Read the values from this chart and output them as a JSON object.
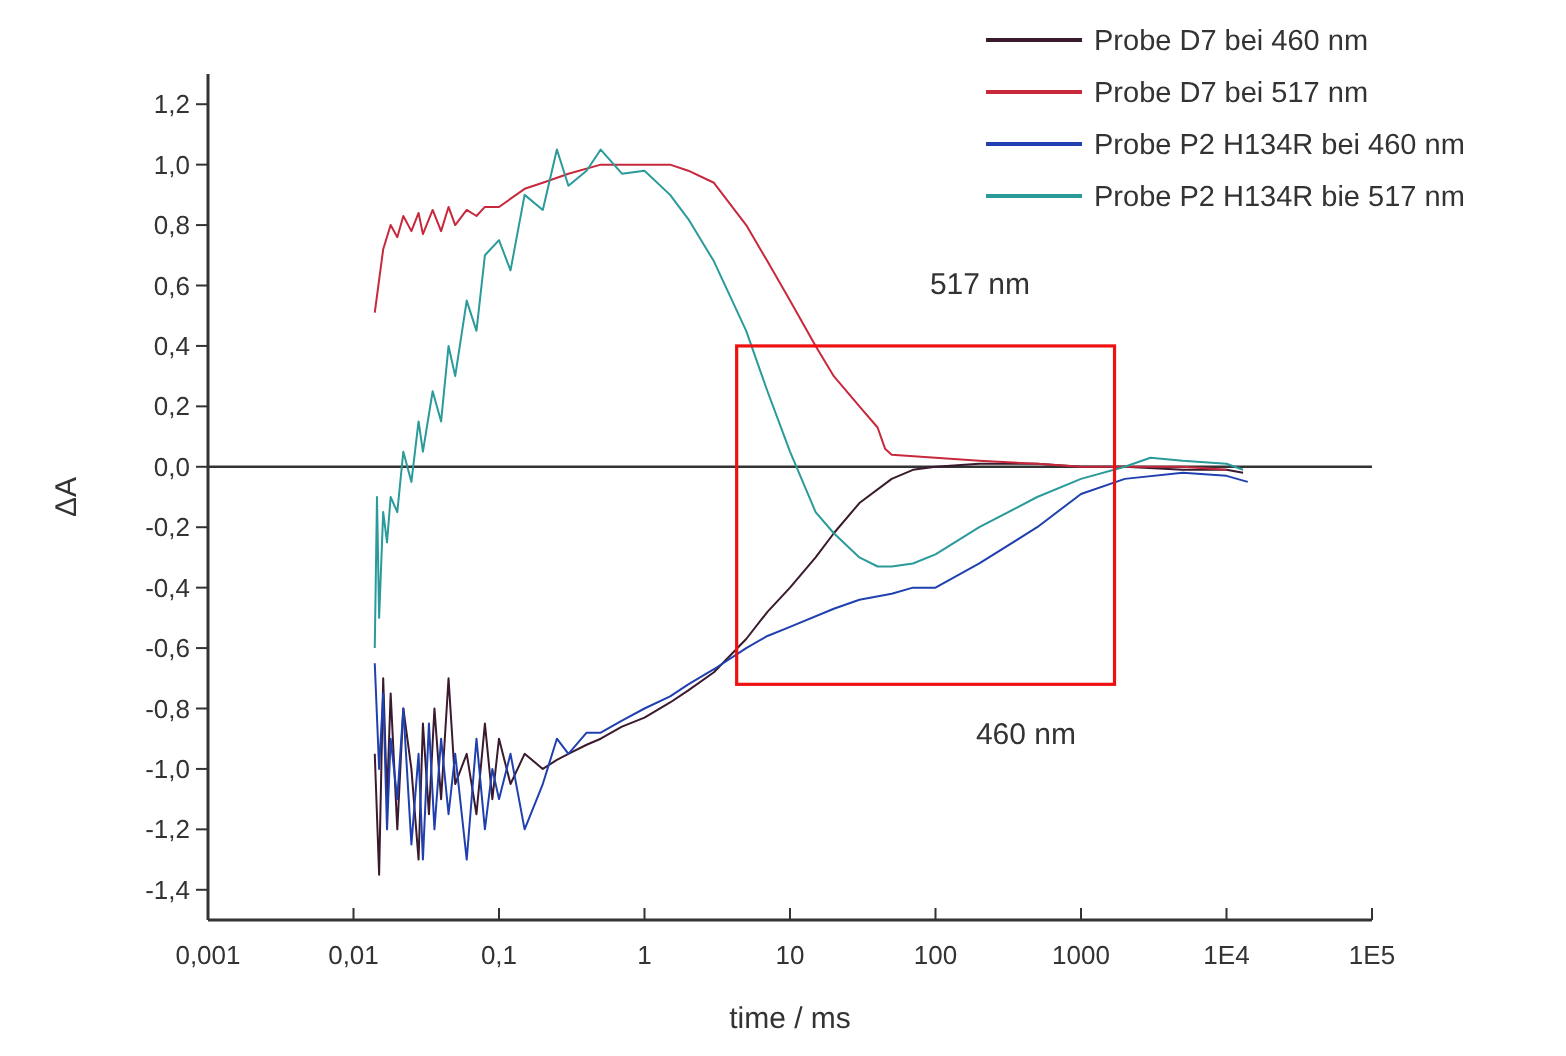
{
  "chart_data": {
    "type": "line",
    "xlabel": "time / ms",
    "ylabel": "ΔA",
    "log": "x",
    "grid": false,
    "legend": "top right",
    "line_style": "solid",
    "xlim": [
      0.001,
      100000
    ],
    "ylim": [
      -1.5,
      1.3
    ],
    "xticks": [
      {
        "value": 0.001,
        "label": "0,001"
      },
      {
        "value": 0.01,
        "label": "0,01"
      },
      {
        "value": 0.1,
        "label": "0,1"
      },
      1,
      10,
      100,
      1000,
      {
        "value": 10000,
        "label": "1E4"
      },
      {
        "value": 100000,
        "label": "1E5"
      }
    ],
    "yticks": [
      {
        "value": -1.4,
        "label": "-1,4"
      },
      {
        "value": -1.2,
        "label": "-1,2"
      },
      {
        "value": -1,
        "label": "-1,0"
      },
      {
        "value": -0.8,
        "label": "-0,8"
      },
      {
        "value": -0.6,
        "label": "-0,6"
      },
      {
        "value": -0.4,
        "label": "-0,4"
      },
      {
        "value": -0.2,
        "label": "-0,2"
      },
      {
        "value": 0,
        "label": "0,0"
      },
      {
        "value": 0.2,
        "label": "0,2"
      },
      {
        "value": 0.4,
        "label": "0,4"
      },
      {
        "value": 0.6,
        "label": "0,6"
      },
      {
        "value": 0.8,
        "label": "0,8"
      },
      {
        "value": 1,
        "label": "1,0"
      },
      {
        "value": 1.2,
        "label": "1,2"
      }
    ],
    "ref_lines": [
      {
        "axis": "y",
        "value": 0,
        "color": "#333333"
      }
    ],
    "annotations": [
      "517 nm",
      "460 nm"
    ],
    "series": [
      {
        "name": "Probe D7 bei 460 nm",
        "color": "#3a1a2e",
        "x": [
          0.014,
          0.015,
          0.016,
          0.017,
          0.018,
          0.02,
          0.022,
          0.025,
          0.028,
          0.03,
          0.033,
          0.036,
          0.04,
          0.045,
          0.05,
          0.06,
          0.07,
          0.08,
          0.09,
          0.1,
          0.12,
          0.15,
          0.2,
          0.25,
          0.3,
          0.4,
          0.5,
          0.7,
          1,
          1.5,
          2,
          3,
          5,
          7,
          10,
          15,
          20,
          30,
          50,
          70,
          100,
          200,
          500,
          1000,
          2000,
          5000,
          10000,
          13000
        ],
        "values": [
          -0.95,
          -1.35,
          -0.7,
          -1.1,
          -0.75,
          -1.2,
          -0.8,
          -1.0,
          -1.3,
          -0.85,
          -1.15,
          -0.8,
          -1.1,
          -0.7,
          -1.05,
          -0.95,
          -1.15,
          -0.85,
          -1.1,
          -0.9,
          -1.05,
          -0.95,
          -1.0,
          -0.97,
          -0.95,
          -0.92,
          -0.9,
          -0.86,
          -0.83,
          -0.78,
          -0.74,
          -0.68,
          -0.57,
          -0.48,
          -0.4,
          -0.3,
          -0.22,
          -0.12,
          -0.04,
          -0.01,
          0.0,
          0.01,
          0.01,
          0.0,
          0.0,
          -0.01,
          -0.01,
          -0.02
        ]
      },
      {
        "name": "Probe D7 bei 517 nm",
        "color": "#c8283c",
        "x": [
          0.014,
          0.016,
          0.018,
          0.02,
          0.022,
          0.025,
          0.028,
          0.03,
          0.035,
          0.04,
          0.045,
          0.05,
          0.06,
          0.07,
          0.08,
          0.1,
          0.15,
          0.2,
          0.3,
          0.5,
          0.7,
          1,
          1.5,
          2,
          3,
          5,
          7,
          10,
          15,
          20,
          30,
          40,
          45,
          50,
          100,
          200,
          500,
          1000,
          2000,
          5000,
          10000
        ],
        "values": [
          0.51,
          0.72,
          0.8,
          0.76,
          0.83,
          0.78,
          0.84,
          0.77,
          0.85,
          0.78,
          0.86,
          0.8,
          0.85,
          0.83,
          0.86,
          0.86,
          0.92,
          0.94,
          0.97,
          1.0,
          1.0,
          1.0,
          1.0,
          0.98,
          0.94,
          0.8,
          0.68,
          0.55,
          0.4,
          0.3,
          0.2,
          0.13,
          0.06,
          0.04,
          0.03,
          0.02,
          0.01,
          0.0,
          0.0,
          0.0,
          -0.01
        ]
      },
      {
        "name": "Probe P2 H134R bei 460 nm",
        "color": "#2040b0",
        "x": [
          0.014,
          0.015,
          0.016,
          0.017,
          0.018,
          0.02,
          0.022,
          0.025,
          0.028,
          0.03,
          0.033,
          0.036,
          0.04,
          0.045,
          0.05,
          0.06,
          0.07,
          0.08,
          0.09,
          0.1,
          0.12,
          0.15,
          0.2,
          0.25,
          0.3,
          0.4,
          0.5,
          0.7,
          1,
          1.5,
          2,
          3,
          5,
          7,
          10,
          20,
          30,
          50,
          70,
          100,
          200,
          500,
          1000,
          2000,
          5000,
          10000,
          14000
        ],
        "values": [
          -0.65,
          -1.0,
          -0.75,
          -1.2,
          -0.9,
          -1.1,
          -0.8,
          -1.25,
          -0.95,
          -1.3,
          -0.85,
          -1.2,
          -0.9,
          -1.15,
          -0.95,
          -1.3,
          -0.9,
          -1.2,
          -1.0,
          -1.1,
          -0.95,
          -1.2,
          -1.05,
          -0.9,
          -0.95,
          -0.88,
          -0.88,
          -0.84,
          -0.8,
          -0.76,
          -0.72,
          -0.67,
          -0.6,
          -0.56,
          -0.53,
          -0.47,
          -0.44,
          -0.42,
          -0.4,
          -0.4,
          -0.32,
          -0.2,
          -0.09,
          -0.04,
          -0.02,
          -0.03,
          -0.05
        ]
      },
      {
        "name": "Probe P2 H134R bie 517 nm",
        "color": "#2a9a9a",
        "x": [
          0.014,
          0.0145,
          0.015,
          0.016,
          0.017,
          0.018,
          0.02,
          0.022,
          0.025,
          0.028,
          0.03,
          0.035,
          0.04,
          0.045,
          0.05,
          0.06,
          0.07,
          0.08,
          0.1,
          0.12,
          0.15,
          0.2,
          0.25,
          0.3,
          0.4,
          0.5,
          0.7,
          1,
          1.5,
          2,
          3,
          5,
          7,
          10,
          15,
          20,
          30,
          40,
          50,
          70,
          100,
          200,
          500,
          1000,
          2000,
          3000,
          5000,
          10000,
          13000
        ],
        "values": [
          -0.6,
          -0.1,
          -0.5,
          -0.15,
          -0.25,
          -0.1,
          -0.15,
          0.05,
          -0.05,
          0.15,
          0.05,
          0.25,
          0.15,
          0.4,
          0.3,
          0.55,
          0.45,
          0.7,
          0.75,
          0.65,
          0.9,
          0.85,
          1.05,
          0.93,
          0.98,
          1.05,
          0.97,
          0.98,
          0.9,
          0.82,
          0.68,
          0.45,
          0.25,
          0.05,
          -0.15,
          -0.22,
          -0.3,
          -0.33,
          -0.33,
          -0.32,
          -0.29,
          -0.2,
          -0.1,
          -0.04,
          0.0,
          0.03,
          0.02,
          0.01,
          -0.01
        ]
      }
    ]
  }
}
